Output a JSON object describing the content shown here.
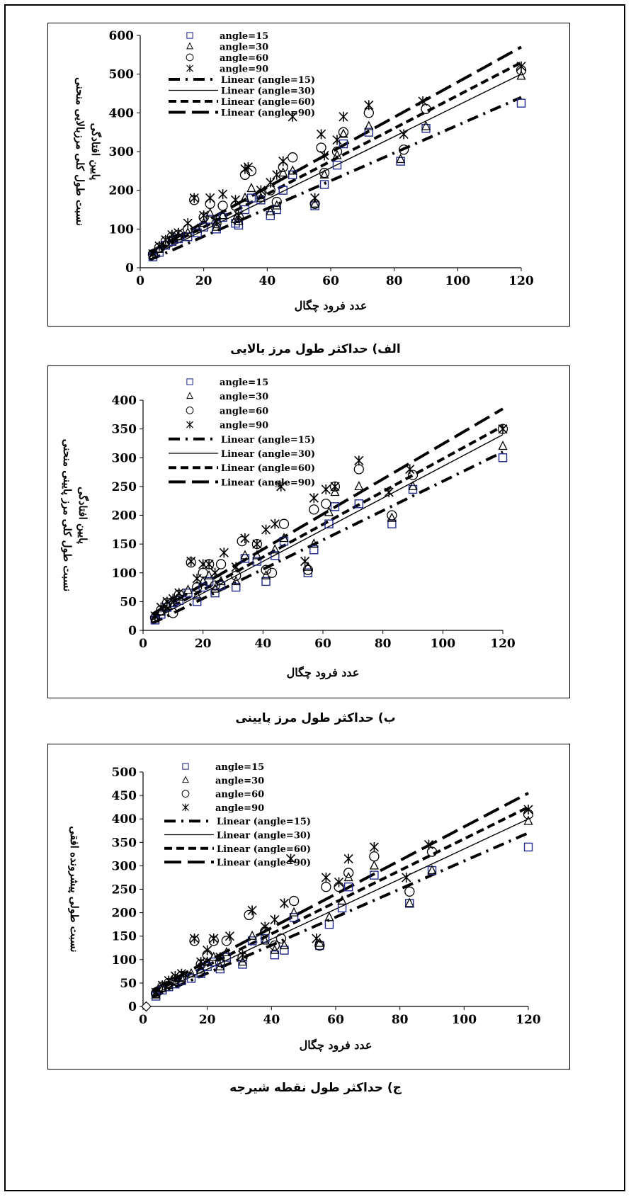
{
  "colors": {
    "square": "#1f2a8c",
    "ink": "#000000"
  },
  "charts": [
    {
      "caption": "الف) حداکثر طول مرز بالایی",
      "chart_data": {
        "type": "scatter",
        "xlabel": "عدد فرود چگال",
        "ylabel": [
          "نسبت طول کلی مرزبالایی منحنی",
          "پایین افتادگی"
        ],
        "xlim": [
          0,
          120
        ],
        "xticks": [
          0,
          20,
          40,
          60,
          80,
          100,
          120
        ],
        "ylim": [
          0,
          600
        ],
        "yticks": [
          0,
          100,
          200,
          300,
          400,
          500,
          600
        ],
        "legend": [
          "angle=15",
          "angle=30",
          "angle=60",
          "angle=90",
          "Linear (angle=15)",
          "Linear (angle=30)",
          "Linear (angle=60)",
          "Linear (angle=90)"
        ],
        "series": [
          {
            "name": "angle=15",
            "marker": "square",
            "x": [
              4,
              6,
              8,
              10,
              12,
              15,
              18,
              20,
              22,
              24,
              26,
              30,
              31,
              33,
              35,
              38,
              41,
              43,
              45,
              48,
              55,
              58,
              62,
              64,
              72,
              82,
              90,
              120
            ],
            "y": [
              28,
              40,
              58,
              68,
              75,
              80,
              90,
              105,
              125,
              100,
              130,
              115,
              110,
              150,
              180,
              175,
              135,
              150,
              200,
              240,
              160,
              215,
              265,
              320,
              350,
              275,
              360,
              425
            ]
          },
          {
            "name": "angle=30",
            "marker": "triangle",
            "x": [
              4,
              6,
              8,
              10,
              12,
              15,
              18,
              20,
              22,
              24,
              26,
              30,
              31,
              33,
              35,
              38,
              41,
              43,
              45,
              48,
              55,
              58,
              62,
              64,
              72,
              82,
              90,
              120
            ],
            "y": [
              32,
              48,
              62,
              75,
              80,
              90,
              100,
              115,
              140,
              105,
              135,
              125,
              120,
              180,
              205,
              180,
              145,
              160,
              245,
              250,
              165,
              240,
              290,
              345,
              365,
              280,
              365,
              495
            ]
          },
          {
            "name": "angle=60",
            "marker": "circle",
            "x": [
              4,
              6,
              8,
              10,
              12,
              15,
              17,
              20,
              22,
              24,
              26,
              30,
              31,
              33,
              35,
              38,
              41,
              43,
              45,
              48,
              55,
              57,
              58,
              62,
              64,
              72,
              83,
              90,
              120
            ],
            "y": [
              35,
              52,
              68,
              80,
              85,
              100,
              175,
              130,
              165,
              115,
              160,
              160,
              130,
              240,
              250,
              190,
              200,
              170,
              260,
              285,
              165,
              310,
              245,
              300,
              350,
              400,
              305,
              410,
              510
            ]
          },
          {
            "name": "angle=90",
            "marker": "star",
            "x": [
              4,
              6,
              8,
              10,
              12,
              15,
              17,
              20,
              22,
              24,
              26,
              30,
              31,
              33,
              34,
              38,
              41,
              43,
              45,
              48,
              55,
              57,
              58,
              62,
              64,
              72,
              83,
              89,
              120
            ],
            "y": [
              36,
              56,
              72,
              85,
              90,
              115,
              180,
              135,
              180,
              120,
              190,
              175,
              135,
              255,
              260,
              200,
              220,
              240,
              275,
              390,
              180,
              345,
              290,
              330,
              390,
              420,
              345,
              430,
              520
            ]
          }
        ],
        "trendlines": [
          {
            "name": "Linear (angle=15)",
            "style": "dashdot",
            "x": [
              3,
              120
            ],
            "y": [
              20,
              440
            ]
          },
          {
            "name": "Linear (angle=30)",
            "style": "solid",
            "x": [
              3,
              120
            ],
            "y": [
              28,
              500
            ]
          },
          {
            "name": "Linear (angle=60)",
            "style": "dash",
            "x": [
              3,
              120
            ],
            "y": [
              33,
              530
            ]
          },
          {
            "name": "Linear (angle=90)",
            "style": "longdash",
            "x": [
              3,
              120
            ],
            "y": [
              40,
              570
            ]
          }
        ]
      }
    },
    {
      "caption": "ب) حداکثر طول مرز پایینی",
      "chart_data": {
        "type": "scatter",
        "xlabel": "عدد فرود چگال",
        "ylabel": [
          "نسبت طول کلی مرز پایینی منحنی",
          "پایین افتادگی"
        ],
        "xlim": [
          0,
          120
        ],
        "xticks": [
          0,
          20,
          40,
          60,
          80,
          100,
          120
        ],
        "ylim": [
          0,
          400
        ],
        "yticks": [
          0,
          50,
          100,
          150,
          200,
          250,
          300,
          350,
          400
        ],
        "legend": [
          "angle=15",
          "angle=30",
          "angle=60",
          "angle=90",
          "Linear (angle=15)",
          "Linear (angle=30)",
          "Linear (angle=60)",
          "Linear (angle=90)"
        ],
        "series": [
          {
            "name": "angle=15",
            "marker": "square",
            "x": [
              4,
              6,
              8,
              10,
              12,
              15,
              18,
              20,
              22,
              24,
              26,
              31,
              34,
              38,
              41,
              44,
              47,
              55,
              57,
              62,
              64,
              72,
              83,
              90,
              120
            ],
            "y": [
              18,
              28,
              40,
              48,
              52,
              65,
              50,
              75,
              85,
              65,
              78,
              75,
              125,
              120,
              85,
              130,
              155,
              100,
              140,
              185,
              215,
              220,
              185,
              245,
              300
            ]
          },
          {
            "name": "angle=30",
            "marker": "triangle",
            "x": [
              4,
              6,
              8,
              10,
              12,
              15,
              18,
              20,
              22,
              24,
              26,
              31,
              34,
              38,
              41,
              44,
              47,
              55,
              57,
              62,
              64,
              72,
              83,
              90,
              120
            ],
            "y": [
              20,
              32,
              45,
              52,
              58,
              70,
              60,
              85,
              95,
              72,
              85,
              85,
              130,
              130,
              95,
              140,
              160,
              110,
              150,
              205,
              240,
              250,
              195,
              250,
              320
            ]
          },
          {
            "name": "angle=60",
            "marker": "circle",
            "x": [
              4,
              6,
              8,
              10,
              12,
              16,
              18,
              20,
              22,
              24,
              26,
              31,
              33,
              38,
              41,
              43,
              47,
              55,
              57,
              61,
              64,
              72,
              83,
              90,
              120
            ],
            "y": [
              22,
              35,
              48,
              30,
              62,
              118,
              75,
              100,
              115,
              78,
              115,
              95,
              155,
              150,
              105,
              100,
              185,
              105,
              210,
              220,
              250,
              280,
              200,
              270,
              350
            ]
          },
          {
            "name": "angle=90",
            "marker": "star",
            "x": [
              4,
              6,
              8,
              10,
              12,
              16,
              18,
              20,
              22,
              24,
              27,
              31,
              34,
              38,
              41,
              44,
              46,
              54,
              57,
              61,
              64,
              72,
              82,
              89,
              120
            ],
            "y": [
              25,
              40,
              50,
              55,
              65,
              120,
              90,
              115,
              115,
              100,
              135,
              110,
              160,
              150,
              175,
              185,
              250,
              120,
              230,
              245,
              250,
              295,
              240,
              280,
              350
            ]
          }
        ],
        "trendlines": [
          {
            "name": "Linear (angle=15)",
            "style": "dashdot",
            "x": [
              3,
              120
            ],
            "y": [
              12,
              310
            ]
          },
          {
            "name": "Linear (angle=30)",
            "style": "solid",
            "x": [
              3,
              120
            ],
            "y": [
              18,
              340
            ]
          },
          {
            "name": "Linear (angle=60)",
            "style": "dash",
            "x": [
              3,
              120
            ],
            "y": [
              22,
              355
            ]
          },
          {
            "name": "Linear (angle=90)",
            "style": "longdash",
            "x": [
              3,
              120
            ],
            "y": [
              28,
              385
            ]
          }
        ]
      }
    },
    {
      "caption": "ج) حداکثر طول نقطه شیرجه",
      "chart_data": {
        "type": "scatter",
        "xlabel": "عدد فرود چگال",
        "ylabel": [
          "نسبت طولی پیشرونده افقی"
        ],
        "xlim": [
          0,
          120
        ],
        "xticks": [
          0,
          20,
          40,
          60,
          80,
          100,
          120
        ],
        "ylim": [
          0,
          500
        ],
        "yticks": [
          0,
          50,
          100,
          150,
          200,
          250,
          300,
          350,
          400,
          450,
          500
        ],
        "legend": [
          "angle=15",
          "angle=30",
          "angle=60",
          "angle=90",
          "Linear (angle=15)",
          "Linear (angle=30)",
          "Linear (angle=60)",
          "Linear (angle=90)"
        ],
        "series": [
          {
            "name": "angle=15",
            "marker": "square",
            "x": [
              4,
              6,
              8,
              10,
              12,
              15,
              18,
              20,
              22,
              24,
              26,
              31,
              34,
              38,
              41,
              44,
              47,
              55,
              58,
              62,
              64,
              72,
              83,
              90,
              120
            ],
            "y": [
              22,
              35,
              42,
              48,
              55,
              60,
              70,
              85,
              95,
              80,
              105,
              90,
              140,
              145,
              110,
              120,
              190,
              130,
              175,
              210,
              255,
              280,
              220,
              290,
              340
            ]
          },
          {
            "name": "angle=30",
            "marker": "triangle",
            "x": [
              4,
              6,
              8,
              10,
              12,
              15,
              18,
              20,
              22,
              24,
              26,
              31,
              34,
              38,
              41,
              44,
              47,
              55,
              58,
              62,
              64,
              72,
              83,
              90,
              120
            ],
            "y": [
              25,
              38,
              45,
              52,
              60,
              70,
              78,
              95,
              105,
              85,
              115,
              95,
              150,
              140,
              120,
              130,
              200,
              135,
              190,
              225,
              275,
              300,
              220,
              290,
              395
            ]
          },
          {
            "name": "angle=60",
            "marker": "circle",
            "x": [
              4,
              6,
              8,
              10,
              12,
              16,
              18,
              20,
              22,
              24,
              26,
              31,
              33,
              38,
              41,
              43,
              47,
              55,
              57,
              61,
              64,
              72,
              83,
              90,
              120
            ],
            "y": [
              28,
              42,
              50,
              58,
              65,
              140,
              90,
              110,
              140,
              95,
              140,
              105,
              195,
              160,
              130,
              145,
              225,
              130,
              255,
              255,
              285,
              320,
              245,
              330,
              410
            ]
          },
          {
            "name": "angle=90",
            "marker": "star",
            "x": [
              4,
              6,
              8,
              10,
              12,
              16,
              18,
              20,
              22,
              24,
              27,
              31,
              34,
              38,
              41,
              44,
              46,
              54,
              57,
              61,
              64,
              72,
              82,
              89,
              120
            ],
            "y": [
              30,
              45,
              55,
              65,
              70,
              145,
              95,
              120,
              145,
              105,
              150,
              110,
              205,
              170,
              185,
              220,
              315,
              145,
              275,
              265,
              315,
              340,
              275,
              345,
              420
            ]
          }
        ],
        "trendlines": [
          {
            "name": "Linear (angle=15)",
            "style": "dashdot",
            "x": [
              3,
              120
            ],
            "y": [
              20,
              370
            ]
          },
          {
            "name": "Linear (angle=30)",
            "style": "solid",
            "x": [
              3,
              120
            ],
            "y": [
              25,
              400
            ]
          },
          {
            "name": "Linear (angle=60)",
            "style": "dash",
            "x": [
              3,
              120
            ],
            "y": [
              30,
              425
            ]
          },
          {
            "name": "Linear (angle=90)",
            "style": "longdash",
            "x": [
              3,
              120
            ],
            "y": [
              35,
              455
            ]
          }
        ],
        "extra_points": [
          {
            "marker": "diamond",
            "x": 1,
            "y": 0
          }
        ]
      }
    }
  ]
}
